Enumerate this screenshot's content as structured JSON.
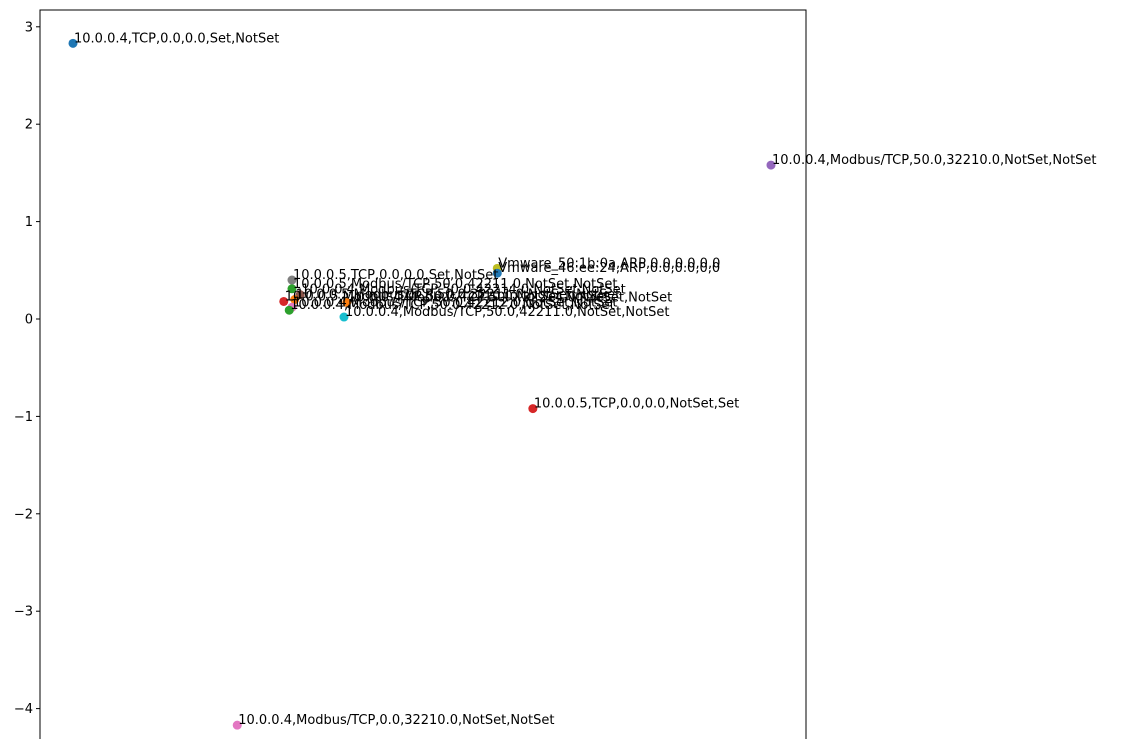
{
  "chart_data": {
    "type": "scatter",
    "title": "",
    "xlabel": "",
    "ylabel": "",
    "grid": false,
    "yticks": [
      3,
      2,
      1,
      0,
      -1,
      -2,
      -3,
      -4
    ],
    "ytick_labels": [
      "3",
      "2",
      "1",
      "0",
      "−1",
      "−2",
      "−3",
      "−4"
    ],
    "points": [
      {
        "x": -1.0,
        "y": 2.83,
        "color": "#1f77b4",
        "label": "10.0.0.4,TCP,0.0,0.0,Set,NotSet"
      },
      {
        "x": 1.55,
        "y": 1.58,
        "color": "#9467bd",
        "label": "10.0.0.4,Modbus/TCP,50.0,32210.0,NotSet,NotSet"
      },
      {
        "x": 0.55,
        "y": 0.52,
        "color": "#bcbd22",
        "label": "Vmware_50:1b:0a,ARP,0.0,0.0,0,0"
      },
      {
        "x": 0.55,
        "y": 0.47,
        "color": "#1f77b4",
        "label": "Vmware_46:ee:24,ARP,0.0,0.0,0,0"
      },
      {
        "x": -0.2,
        "y": 0.4,
        "color": "#7f7f7f",
        "label": "10.0.0.5,TCP,0.0,0.0,Set,NotSet"
      },
      {
        "x": -0.2,
        "y": 0.31,
        "color": "#2ca02c",
        "label": "10.0.0.5,Modbus/TCP,50.0,42211.0,NotSet,NotSet"
      },
      {
        "x": -0.17,
        "y": 0.25,
        "color": "#8c564b",
        "label": "10.0.0.4,Modbus/TCP,50.0,42214.0,NotSet,NotSet"
      },
      {
        "x": -0.23,
        "y": 0.18,
        "color": "#d62728",
        "label": "10.0.0.5,Modbus/TCP,50.0,42210.0,NotSet,NotSet"
      },
      {
        "x": -0.19,
        "y": 0.2,
        "color": "#ff7f0e",
        "label": "10.0.0.5,Modbus/TCP,50.0,32211.0,NotSet,NotSet"
      },
      {
        "x": 0.0,
        "y": 0.17,
        "color": "#ff7f0e",
        "label": "10.0.0.4,Modbus/TCP,50.0,32214.0,NotSet,NotSet"
      },
      {
        "x": -0.2,
        "y": 0.12,
        "color": "#e377c2",
        "label": "10.0.0.4,Modbus/TCP,50.0,42212.0,NotSet,NotSet"
      },
      {
        "x": -0.21,
        "y": 0.09,
        "color": "#2ca02c",
        "label": "10.0.0.4,Modbus/TCP,50.0,42212.0,NotSet,NotSet"
      },
      {
        "x": -0.01,
        "y": 0.02,
        "color": "#17becf",
        "label": "10.0.0.4,Modbus/TCP,50.0,42211.0,NotSet,NotSet"
      },
      {
        "x": 0.68,
        "y": -0.92,
        "color": "#d62728",
        "label": "10.0.0.5,TCP,0.0,0.0,NotSet,Set"
      },
      {
        "x": -0.4,
        "y": -4.17,
        "color": "#e377c2",
        "label": "10.0.0.4,Modbus/TCP,0.0,32210.0,NotSet,NotSet"
      }
    ]
  }
}
